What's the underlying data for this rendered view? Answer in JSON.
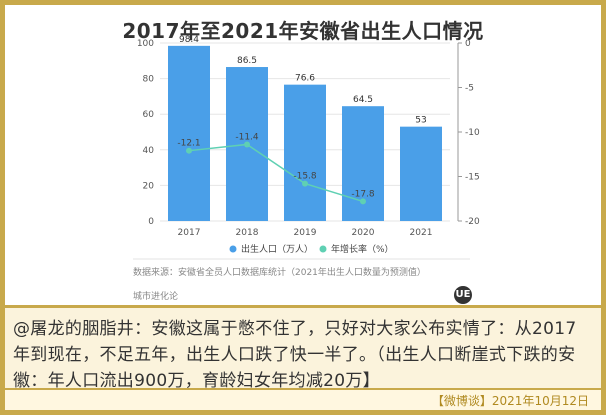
{
  "chart_data": {
    "type": "bar",
    "title": "2017年至2021年安徽省出生人口情况",
    "categories": [
      "2017",
      "2018",
      "2019",
      "2020",
      "2021"
    ],
    "series": [
      {
        "name": "出生人口（万人）",
        "type": "bar",
        "values": [
          98.4,
          86.5,
          76.6,
          64.5,
          53
        ],
        "axis": "left",
        "data_labels": [
          "98.4",
          "86.5",
          "76.6",
          "64.5",
          "53"
        ]
      },
      {
        "name": "年增长率（%）",
        "type": "line",
        "values": [
          -12.1,
          -11.4,
          -15.8,
          -17.8,
          null
        ],
        "axis": "right",
        "data_labels": [
          "-12.1",
          "-11.4",
          "-15.8",
          "-17.8"
        ]
      }
    ],
    "left_axis": {
      "ylim": [
        0,
        100
      ],
      "ticks": [
        "0",
        "20",
        "40",
        "60",
        "80",
        "100"
      ]
    },
    "right_axis": {
      "ylim": [
        -20,
        0
      ],
      "ticks": [
        "0",
        "-5",
        "-10",
        "-15",
        "-20"
      ]
    },
    "legend_position": "bottom",
    "grid": true,
    "colors": {
      "bar": "#4a9fe8",
      "line": "#5fd0b3"
    }
  },
  "source_note": "数据来源：安徽省全员人口数据库统计（2021年出生人口数量为预测值）",
  "watermark": "城市进化论",
  "logo_text": "UE",
  "caption": "@屠龙的胭脂井：安徽这属于憋不住了，只好对大家公布实情了：从2017年到现在，不足五年，出生人口跌了快一半了。（出生人口断崖式下跌的安徽：年人口流出900万，育龄妇女年均减20万】",
  "footer": "【微博谈】2021年10月12日"
}
